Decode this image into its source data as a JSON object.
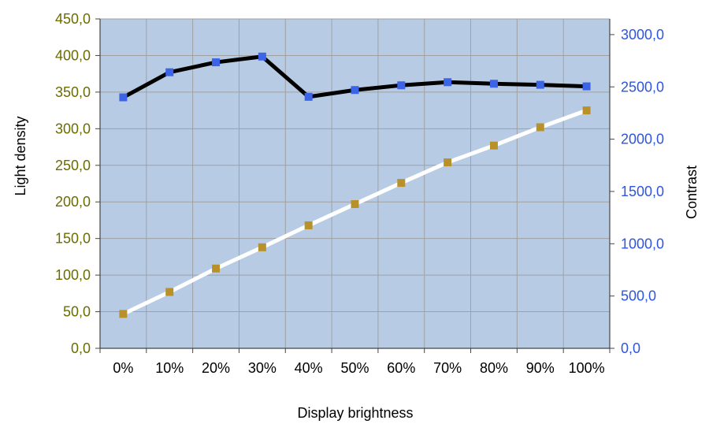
{
  "chart_data": {
    "type": "line",
    "categories": [
      "0%",
      "10%",
      "20%",
      "30%",
      "40%",
      "50%",
      "60%",
      "70%",
      "80%",
      "90%",
      "100%"
    ],
    "xlabel": "Display brightness",
    "ylabel": "Light density",
    "y2label": "Contrast",
    "ylim": [
      0,
      450
    ],
    "y2lim": [
      0,
      3150
    ],
    "yticks": [
      "0,0",
      "50,0",
      "100,0",
      "150,0",
      "200,0",
      "250,0",
      "300,0",
      "350,0",
      "400,0",
      "450,0"
    ],
    "y2ticks": [
      "0,0",
      "500,0",
      "1000,0",
      "1500,0",
      "2000,0",
      "2500,0",
      "3000,0"
    ],
    "grid": true,
    "series": [
      {
        "axis": "right",
        "values": [
          2400,
          2640,
          2735,
          2790,
          2405,
          2470,
          2515,
          2545,
          2530,
          2520,
          2505
        ],
        "line_color": "#000000",
        "marker_color": "#3c64e6"
      },
      {
        "axis": "left",
        "values": [
          47,
          77,
          109,
          138,
          168,
          197,
          226,
          254,
          277,
          302,
          325
        ],
        "line_color": "#ffffff",
        "marker_color": "#b8912a"
      }
    ],
    "colors": {
      "plot_background": "#b7cce4",
      "grid": "#a0a0a0",
      "left_axis_text": "#6b6b00",
      "right_axis_text": "#2e55e0"
    }
  }
}
